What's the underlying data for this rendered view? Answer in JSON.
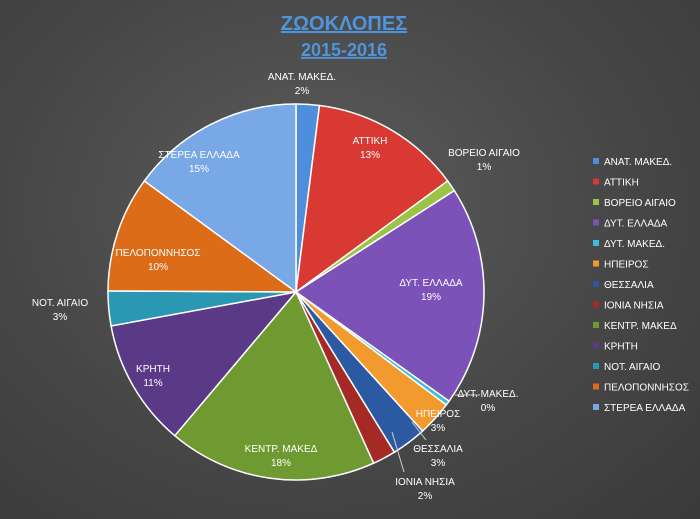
{
  "chart_data": {
    "type": "pie",
    "title_lines": [
      "ΖΩΟΚΛΟΠΕΣ",
      "2015-2016"
    ],
    "legend_position": "right",
    "slices": [
      {
        "label": "ΑΝΑΤ. ΜΑΚΕΔ.",
        "value": 2,
        "value_label": "2%",
        "color": "#4d8fdc"
      },
      {
        "label": "ΑΤΤΙΚΗ",
        "value": 13,
        "value_label": "13%",
        "color": "#d83a33"
      },
      {
        "label": "ΒΟΡΕΙΟ ΑΙΓΑΙΟ",
        "value": 1,
        "value_label": "1%",
        "color": "#9bc446"
      },
      {
        "label": "ΔΥΤ. ΕΛΛΑΔΑ",
        "value": 19,
        "value_label": "19%",
        "color": "#7d52b8"
      },
      {
        "label": "ΔΥΤ. ΜΑΚΕΔ.",
        "value": 0.4,
        "value_label": "0%",
        "color": "#3cbddb"
      },
      {
        "label": "ΗΠΕΙΡΟΣ",
        "value": 3,
        "value_label": "3%",
        "color": "#f39a2e"
      },
      {
        "label": "ΘΕΣΣΑΛΙΑ",
        "value": 3,
        "value_label": "3%",
        "color": "#2b5aa3"
      },
      {
        "label": "ΙΟΝΙΑ ΝΗΣΙΑ",
        "value": 2,
        "value_label": "2%",
        "color": "#a52a26"
      },
      {
        "label": "ΚΕΝΤΡ. ΜΑΚΕΔ",
        "value": 18,
        "value_label": "18%",
        "color": "#6f9a32"
      },
      {
        "label": "ΚΡΗΤΗ",
        "value": 11,
        "value_label": "11%",
        "color": "#5a3a86"
      },
      {
        "label": "ΝΟΤ. ΑΙΓΑΙΟ",
        "value": 3,
        "value_label": "3%",
        "color": "#2a97b3"
      },
      {
        "label": "ΠΕΛΟΠΟΝΝΗΣΟΣ",
        "value": 10,
        "value_label": "10%",
        "color": "#dd6c18"
      },
      {
        "label": "ΣΤΕΡΕΑ ΕΛΛΑΔΑ",
        "value": 15,
        "value_label": "15%",
        "color": "#78a8e6"
      }
    ]
  }
}
